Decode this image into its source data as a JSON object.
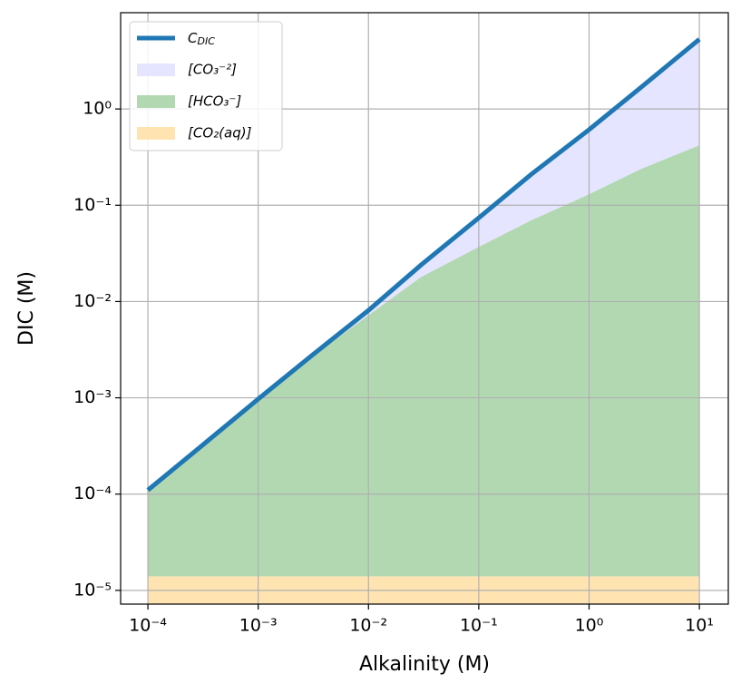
{
  "chart_data": {
    "type": "line",
    "x_label": "Alkalinity (M)",
    "y_label": "DIC (M)",
    "xscale": "log",
    "yscale": "log",
    "grid": true,
    "legend": "upper left",
    "xlim": [
      5.66e-05,
      18.3
    ],
    "ylim": [
      7.2e-06,
      10
    ],
    "xticks": [
      {
        "value": 0.0001,
        "label": "10⁻⁴"
      },
      {
        "value": 0.001,
        "label": "10⁻³"
      },
      {
        "value": 0.01,
        "label": "10⁻²"
      },
      {
        "value": 0.1,
        "label": "10⁻¹"
      },
      {
        "value": 1,
        "label": "10⁰"
      },
      {
        "value": 10,
        "label": "10¹"
      }
    ],
    "yticks": [
      {
        "value": 1e-05,
        "label": "10⁻⁵"
      },
      {
        "value": 0.0001,
        "label": "10⁻⁴"
      },
      {
        "value": 0.001,
        "label": "10⁻³"
      },
      {
        "value": 0.01,
        "label": "10⁻²"
      },
      {
        "value": 0.1,
        "label": "10⁻¹"
      },
      {
        "value": 1,
        "label": "10⁰"
      }
    ],
    "x": [
      0.0001,
      0.0003,
      0.001,
      0.003,
      0.01,
      0.03,
      0.1,
      0.3,
      1,
      3,
      10
    ],
    "series": [
      {
        "name": "CDIC",
        "type": "line",
        "color": "#1f77b4",
        "values": [
          0.00011,
          0.00031,
          0.00097,
          0.0027,
          0.0081,
          0.024,
          0.074,
          0.21,
          0.61,
          1.7,
          5.3
        ]
      },
      {
        "name": "[CO₃⁻²]",
        "type": "area",
        "color": "#e5e5ff",
        "values": [
          1e-06,
          6e-06,
          2.6e-05,
          8.6e-05,
          0.0009,
          0.006,
          0.037,
          0.14,
          0.48,
          1.46,
          4.88
        ]
      },
      {
        "name": "[HCO₃⁻]",
        "type": "area",
        "color": "#b2d8b2",
        "values": [
          9.5e-05,
          0.00029,
          0.00093,
          0.0026,
          0.0072,
          0.018,
          0.037,
          0.07,
          0.13,
          0.24,
          0.42
        ]
      },
      {
        "name": "[CO₂(aq)]",
        "type": "area",
        "color": "#ffe4b2",
        "values": [
          1.4e-05,
          1.4e-05,
          1.4e-05,
          1.4e-05,
          1.4e-05,
          1.4e-05,
          1.4e-05,
          1.4e-05,
          1.4e-05,
          1.4e-05,
          1.4e-05
        ]
      }
    ]
  }
}
